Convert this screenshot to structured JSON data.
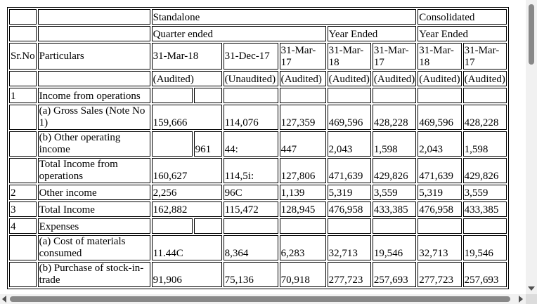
{
  "table": {
    "header": {
      "standalone": "Standalone",
      "consolidated": "Consolidated",
      "quarter_ended": "Quarter ended",
      "year_ended_s": "Year Ended",
      "year_ended_c": "Year Ended",
      "sr_no": "Sr.No",
      "particulars": "Particulars",
      "dates": [
        "31-Mar-18",
        "31-Dec-17",
        "31-Mar-17",
        "31-Mar-18",
        "31-Mar-17",
        "31-Mar-18",
        "31-Mar-17"
      ],
      "audit": [
        "(Audited)",
        "(Unaudited)",
        "(Audited)",
        "(Audited)",
        "(Audited)",
        "(Audited)",
        "(Audited)"
      ]
    },
    "rows": [
      {
        "sr": "1",
        "particular": "Income from operations",
        "values": [
          "",
          "",
          "",
          "",
          "",
          "",
          ""
        ]
      },
      {
        "sr": "",
        "particular": "(a) Gross Sales (Note No 1)",
        "values": [
          "159,666",
          "114,076",
          "127,359",
          "469,596",
          "428,228",
          "469,596",
          "428,228"
        ]
      },
      {
        "sr": "",
        "particular": "(b) Other operating income",
        "split_a": "",
        "split_b": "961",
        "values": [
          "",
          "44:",
          "447",
          "2,043",
          "1,598",
          "2,043",
          "1,598"
        ]
      },
      {
        "sr": "",
        "particular": "Total Income from operations",
        "values": [
          "160,627",
          "114,5i:",
          "127,806",
          "471,639",
          "429,826",
          "471,639",
          "429,826"
        ]
      },
      {
        "sr": "2",
        "particular": "Other income",
        "values": [
          "2,256",
          "96C",
          "1,139",
          "5,319",
          "3,559",
          "5,319",
          "3,559"
        ]
      },
      {
        "sr": "3",
        "particular": "Total Income",
        "values": [
          "162,882",
          "115,472",
          "128,945",
          "476,958",
          "433,385",
          "476,958",
          "433,385"
        ]
      },
      {
        "sr": "4",
        "particular": "Expenses",
        "values": [
          "",
          "",
          "",
          "",
          "",
          "",
          ""
        ]
      },
      {
        "sr": "",
        "particular": "(a) Cost of materials consumed",
        "values": [
          "11.44C",
          "8,364",
          "6,283",
          "32,713",
          "19,546",
          "32,713",
          "19,546"
        ]
      },
      {
        "sr": "",
        "particular": "(b) Purchase of stock-in-trade",
        "values": [
          "91,906",
          "75,136",
          "70,918",
          "277,723",
          "257,693",
          "277,723",
          "257,693"
        ]
      }
    ]
  }
}
